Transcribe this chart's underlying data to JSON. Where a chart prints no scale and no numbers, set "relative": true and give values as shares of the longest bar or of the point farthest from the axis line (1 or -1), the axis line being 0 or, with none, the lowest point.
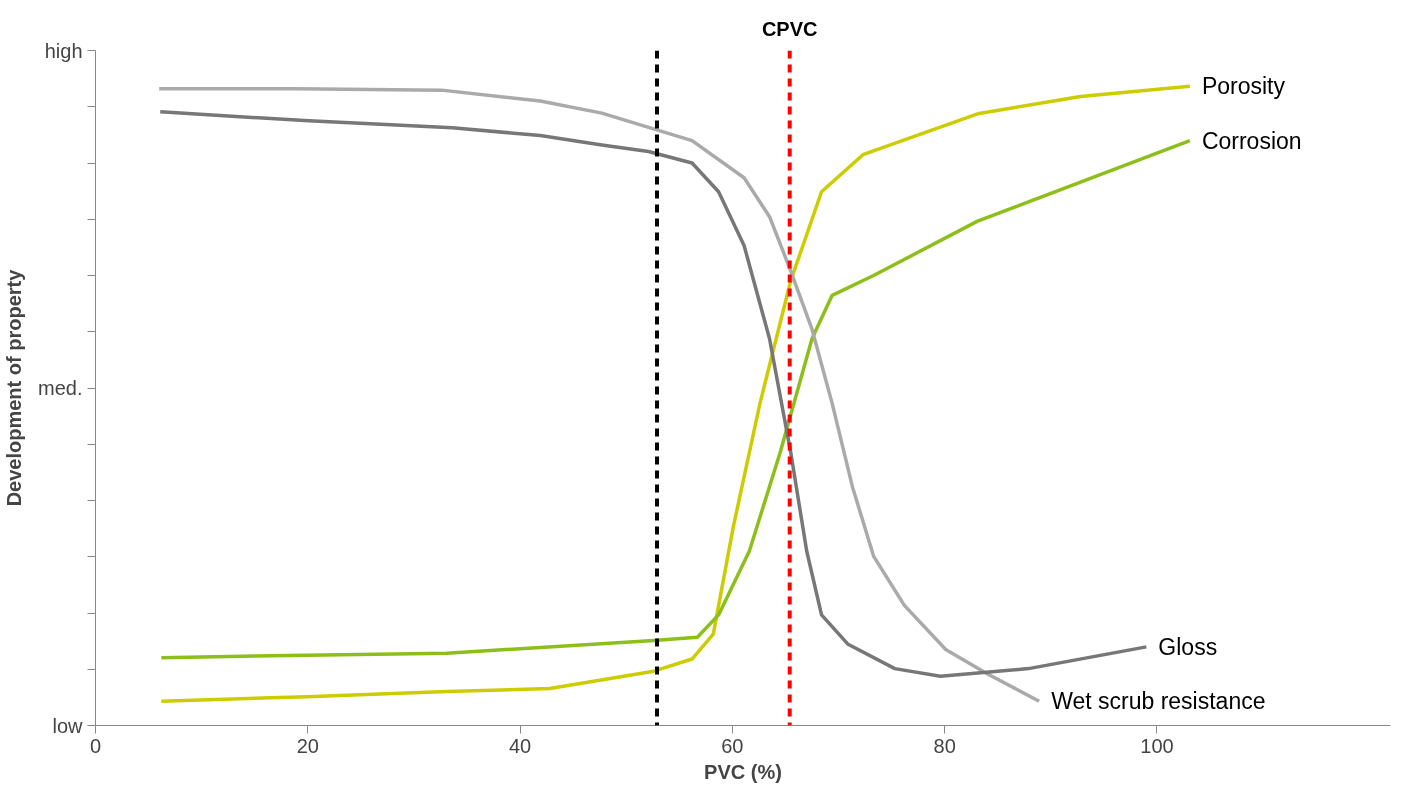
{
  "chart_data": {
    "type": "line",
    "xlabel": "PVC (%)",
    "ylabel": "Development of property",
    "xlim": [
      0,
      122
    ],
    "xticks": [
      0,
      20,
      40,
      60,
      80,
      100
    ],
    "relative": true,
    "annotations": [
      "low",
      "med.",
      "high"
    ],
    "grid": false,
    "series": [
      {
        "name": "Porosity",
        "color": "#cccc00",
        "x": [
          6.2,
          19.9,
          33.1,
          42.8,
          52.6,
          56.2,
          58.2,
          60.1,
          62.6,
          65.5,
          68.4,
          72.3,
          83.1,
          92.8,
          103.1
        ],
        "values": [
          0.038,
          0.045,
          0.053,
          0.058,
          0.085,
          0.104,
          0.143,
          0.312,
          0.504,
          0.696,
          0.835,
          0.893,
          0.957,
          0.984,
          1
        ]
      },
      {
        "name": "Corrosion",
        "color": "#8cbf1a",
        "x": [
          6.2,
          19.9,
          33.1,
          52.6,
          56.7,
          58.7,
          61.6,
          64.5,
          67.5,
          69.4,
          73.3,
          83.1,
          92.8,
          103.1
        ],
        "values": [
          0.106,
          0.11,
          0.113,
          0.133,
          0.138,
          0.173,
          0.273,
          0.427,
          0.605,
          0.673,
          0.704,
          0.789,
          0.85,
          0.915
        ]
      },
      {
        "name": "Wet scrub resistance",
        "color": "#aaaaaa",
        "x": [
          6.0,
          19.0,
          32.6,
          41.9,
          47.7,
          56.2,
          61.1,
          63.5,
          65.5,
          67.5,
          69.4,
          71.3,
          73.3,
          76.2,
          80.1,
          84.0,
          88.9
        ],
        "values": [
          0.996,
          0.996,
          0.994,
          0.977,
          0.958,
          0.915,
          0.857,
          0.796,
          0.711,
          0.62,
          0.504,
          0.374,
          0.265,
          0.188,
          0.119,
          0.081,
          0.038
        ]
      },
      {
        "name": "Gloss",
        "color": "#777777",
        "x": [
          6.1,
          20.1,
          33.6,
          41.9,
          47.7,
          52.1,
          56.2,
          58.7,
          61.1,
          63.5,
          65.5,
          67.0,
          68.4,
          70.9,
          75.3,
          79.6,
          87.9,
          99.0
        ],
        "values": [
          0.96,
          0.946,
          0.935,
          0.923,
          0.908,
          0.898,
          0.88,
          0.835,
          0.751,
          0.605,
          0.427,
          0.273,
          0.173,
          0.127,
          0.089,
          0.077,
          0.089,
          0.123
        ]
      }
    ],
    "line_style": "solid",
    "ref_lines": [
      {
        "axis": "x",
        "value": 52.9,
        "label": null,
        "color": "#000000",
        "line_style": "dashed"
      },
      {
        "axis": "x",
        "value": 65.4,
        "label": "CPVC",
        "color": "#ff0000",
        "line_style": "dashed"
      }
    ]
  }
}
